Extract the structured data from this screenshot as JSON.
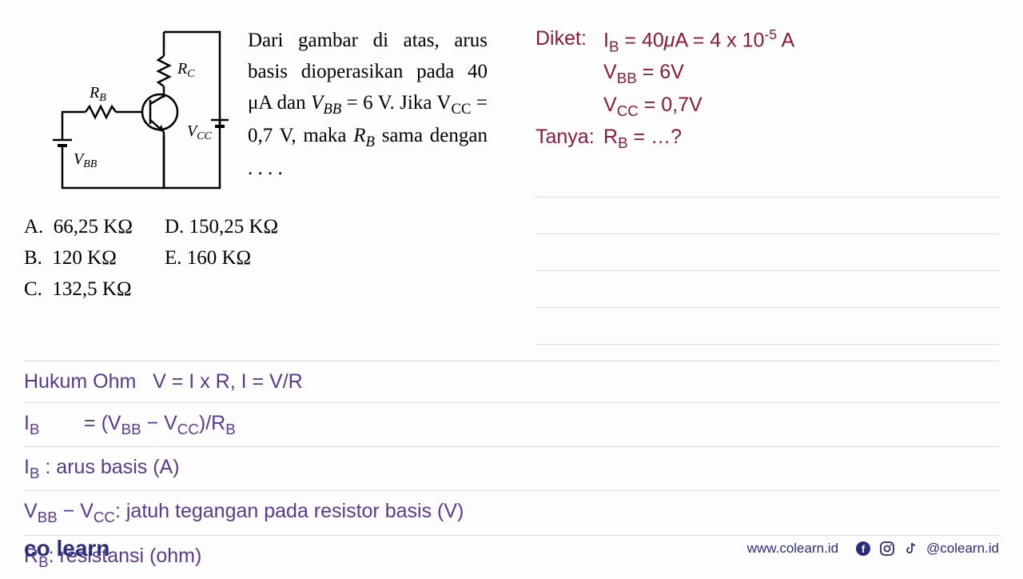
{
  "circuit": {
    "labels": {
      "rc": "R",
      "rc_sub": "C",
      "rb": "R",
      "rb_sub": "B",
      "vcc": "V",
      "vcc_sub": "CC",
      "vbb": "V",
      "vbb_sub": "BB"
    },
    "stroke_color": "#000000",
    "stroke_width": 2
  },
  "problem": {
    "text_html": "Dari gambar di atas, arus basis dioperasikan pada 40 μA dan <i>V<sub>BB</sub></i> = 6 V. Jika V<sub>CC</sub> = 0,7 V, maka <i>R<sub>B</sub></i> sama dengan . . . ."
  },
  "options": {
    "col1": [
      "A.  66,25 KΩ",
      "B.  120 KΩ",
      "C.  132,5 KΩ"
    ],
    "col2": [
      "D. 150,25 KΩ",
      "E. 160 KΩ"
    ]
  },
  "known": {
    "diket_label": "Diket:",
    "tanya_label": "Tanya:",
    "lines": {
      "ib": "I<sub>B</sub> = 40<i>μ</i>A = 4 x 10<sup>-5</sup> A",
      "vbb": "V<sub>BB</sub> = 6V",
      "vcc": "V<sub>CC</sub> = 0,7V",
      "rb": "R<sub>B</sub> = …?"
    },
    "color": "#8b1a3a"
  },
  "formulas": {
    "color": "#5b3a8e",
    "lines": [
      "Hukum Ohm   V = I x R, I = V/R",
      "I<sub>B</sub>        = (V<sub>BB</sub> − V<sub>CC</sub>)/R<sub>B</sub>",
      "I<sub>B</sub> : arus basis (A)",
      "V<sub>BB</sub> − V<sub>CC</sub>: jatuh tegangan pada resistor basis (V)",
      "R<sub>B</sub>: resistansi (ohm)"
    ]
  },
  "footer": {
    "logo_pre": "co",
    "logo_post": "learn",
    "url": "www.colearn.id",
    "handle": "@colearn.id"
  },
  "colors": {
    "background": "#fdfdfd",
    "purple": "#5b3a8e",
    "maroon": "#8b1a3a",
    "navy": "#2a2d7c",
    "divider": "#d8d8e0"
  }
}
